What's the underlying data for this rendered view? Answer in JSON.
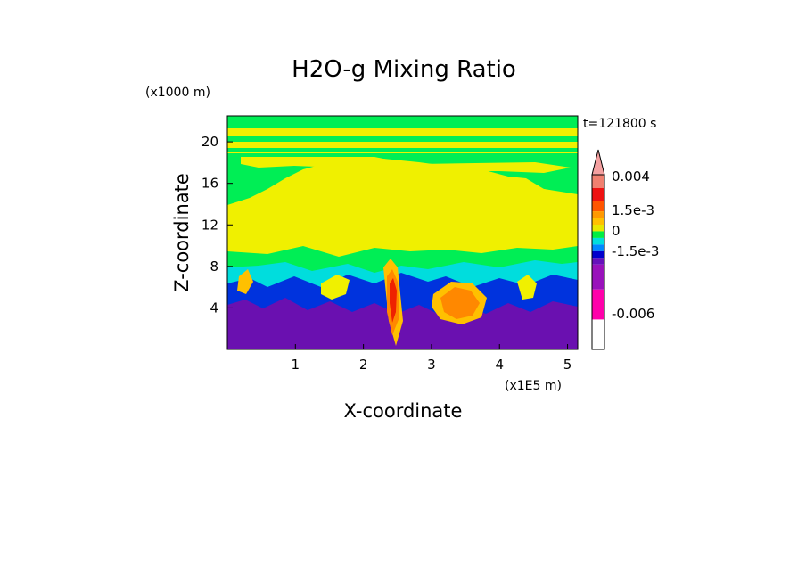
{
  "chart_data": {
    "type": "heatmap",
    "title": "H2O-g Mixing Ratio",
    "xlabel": "X-coordinate",
    "ylabel": "Z-coordinate",
    "x_units": "(x1E5 m)",
    "y_units": "(x1000 m)",
    "time_label": "t=121800 s",
    "xlim": [
      0,
      5.15
    ],
    "ylim": [
      0,
      22.5
    ],
    "x_ticks": [
      "1",
      "2",
      "3",
      "4",
      "5"
    ],
    "x_tick_values": [
      1,
      2,
      3,
      4,
      5
    ],
    "y_ticks": [
      "4",
      "8",
      "12",
      "16",
      "20"
    ],
    "y_tick_values": [
      4,
      8,
      12,
      16,
      20
    ],
    "colorbar": {
      "labels": [
        "0.004",
        "1.5e-3",
        "0",
        "-1.5e-3",
        "-0.006"
      ],
      "colors_top_to_bottom": [
        "#f4a0a0",
        "#f08070",
        "#ee1111",
        "#ff5500",
        "#ff9900",
        "#ffc000",
        "#e8e800",
        "#00ee44",
        "#00dddd",
        "#0088ff",
        "#0000cc",
        "#6611bb",
        "#9911bb",
        "#ff00aa"
      ]
    },
    "field_colors": {
      "min": "#6a10b0",
      "low": "#0033dd",
      "neg_small": "#00dddd",
      "near_zero": "#00ee55",
      "zero": "#f0f000",
      "pos_small": "#ffc000",
      "pos": "#ff8800",
      "pos_high": "#ee2200"
    }
  }
}
